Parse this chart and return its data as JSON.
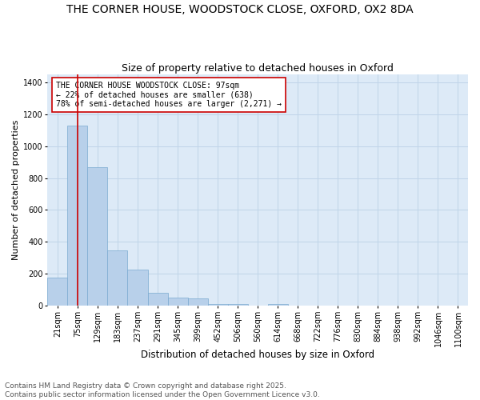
{
  "title1": "THE CORNER HOUSE, WOODSTOCK CLOSE, OXFORD, OX2 8DA",
  "title2": "Size of property relative to detached houses in Oxford",
  "xlabel": "Distribution of detached houses by size in Oxford",
  "ylabel": "Number of detached properties",
  "categories": [
    "21sqm",
    "75sqm",
    "129sqm",
    "183sqm",
    "237sqm",
    "291sqm",
    "345sqm",
    "399sqm",
    "452sqm",
    "506sqm",
    "560sqm",
    "614sqm",
    "668sqm",
    "722sqm",
    "776sqm",
    "830sqm",
    "884sqm",
    "938sqm",
    "992sqm",
    "1046sqm",
    "1100sqm"
  ],
  "values": [
    175,
    1130,
    870,
    345,
    225,
    80,
    50,
    45,
    12,
    8,
    0,
    8,
    0,
    0,
    0,
    0,
    0,
    0,
    0,
    0,
    0
  ],
  "bar_color": "#b8d0ea",
  "bar_edge_color": "#7aaad0",
  "highlight_color": "#cc0000",
  "annotation_text": "THE CORNER HOUSE WOODSTOCK CLOSE: 97sqm\n← 22% of detached houses are smaller (638)\n78% of semi-detached houses are larger (2,271) →",
  "annotation_box_color": "#ffffff",
  "annotation_box_edge": "#cc0000",
  "ylim": [
    0,
    1450
  ],
  "yticks": [
    0,
    200,
    400,
    600,
    800,
    1000,
    1200,
    1400
  ],
  "grid_color": "#c0d4e8",
  "plot_bg_color": "#ddeaf7",
  "fig_bg_color": "#ffffff",
  "footer_text": "Contains HM Land Registry data © Crown copyright and database right 2025.\nContains public sector information licensed under the Open Government Licence v3.0.",
  "title1_fontsize": 10,
  "title2_fontsize": 9,
  "xlabel_fontsize": 8.5,
  "ylabel_fontsize": 8,
  "tick_fontsize": 7,
  "annotation_fontsize": 7,
  "footer_fontsize": 6.5
}
